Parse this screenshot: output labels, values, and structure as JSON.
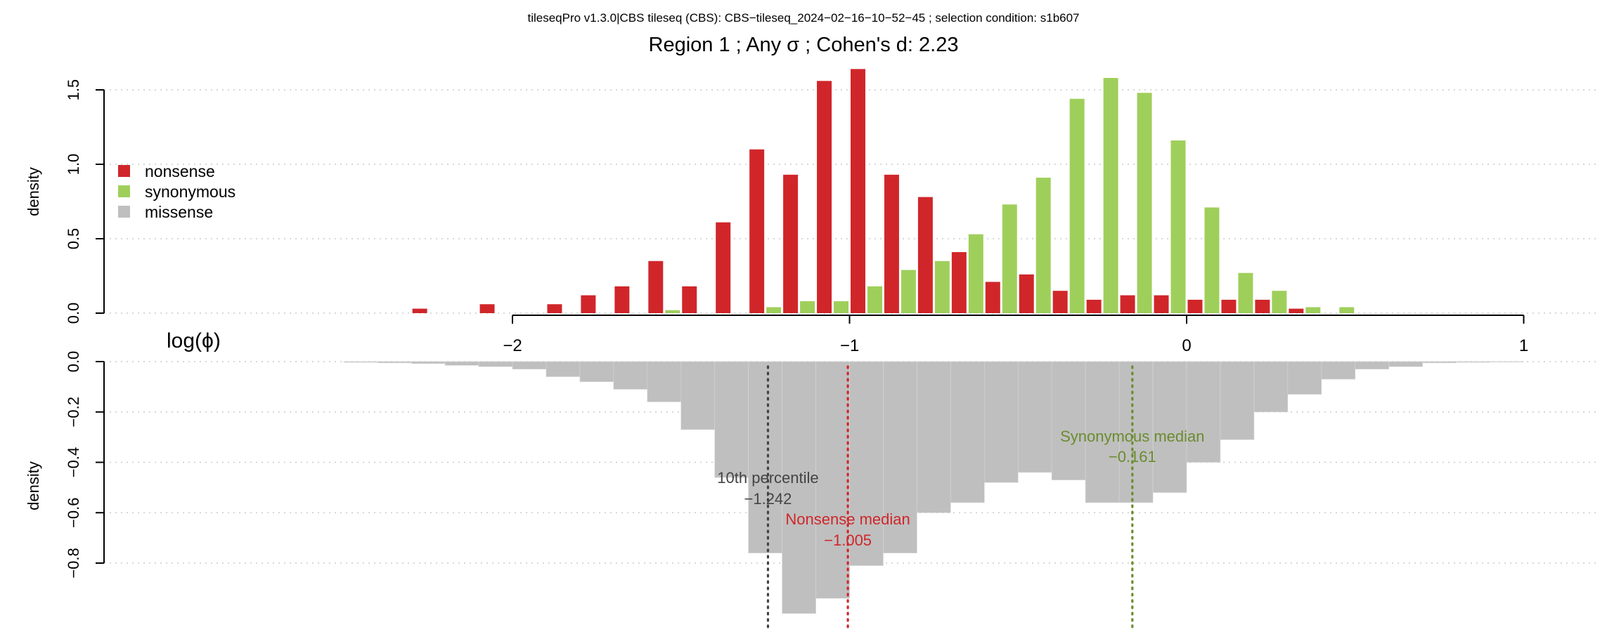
{
  "header": {
    "subtitle": "tileseqPro v1.3.0|CBS tileseq (CBS): CBS−tileseq_2024−02−16−10−52−45 ; selection condition: s1b607",
    "title": "Region 1 ; Any σ ; Cohen's d:  2.23"
  },
  "colors": {
    "nonsense": "#d0262a",
    "synonymous": "#9fcf5b",
    "missense": "#bfbfbf",
    "percentile_line": "#444444",
    "nonsense_median_line": "#d0262a",
    "synonymous_median_line": "#6b8c2e",
    "grid": "#cccccc"
  },
  "legend": {
    "items": [
      {
        "label": "nonsense",
        "color": "#d0262a"
      },
      {
        "label": "synonymous",
        "color": "#9fcf5b"
      },
      {
        "label": "missense",
        "color": "#bfbfbf"
      }
    ]
  },
  "chart_data": [
    {
      "type": "bar",
      "ylabel": "density",
      "xlabel": "log(ϕ)",
      "xlim": [
        -2.2,
        1.0
      ],
      "ylim": [
        0,
        1.6
      ],
      "grid": true,
      "legend_placement": "left",
      "bin_width": 0.1,
      "x_ticks": [
        -2,
        -1,
        0,
        1
      ],
      "x_tick_labels": [
        "−2",
        "−1",
        "0",
        "1"
      ],
      "y_ticks": [
        0.0,
        0.5,
        1.0,
        1.5
      ],
      "y_tick_labels": [
        "0.0",
        "0.5",
        "1.0",
        "1.5"
      ],
      "series": [
        {
          "name": "nonsense",
          "color": "#d0262a",
          "bins": [
            {
              "x": -2.25,
              "density": 0.03
            },
            {
              "x": -2.05,
              "density": 0.06
            },
            {
              "x": -1.85,
              "density": 0.06
            },
            {
              "x": -1.75,
              "density": 0.12
            },
            {
              "x": -1.65,
              "density": 0.18
            },
            {
              "x": -1.55,
              "density": 0.35
            },
            {
              "x": -1.45,
              "density": 0.18
            },
            {
              "x": -1.35,
              "density": 0.61
            },
            {
              "x": -1.25,
              "density": 1.1
            },
            {
              "x": -1.15,
              "density": 0.93
            },
            {
              "x": -1.05,
              "density": 1.56
            },
            {
              "x": -0.95,
              "density": 1.64
            },
            {
              "x": -0.85,
              "density": 0.93
            },
            {
              "x": -0.75,
              "density": 0.78
            },
            {
              "x": -0.65,
              "density": 0.41
            },
            {
              "x": -0.55,
              "density": 0.21
            },
            {
              "x": -0.45,
              "density": 0.26
            },
            {
              "x": -0.35,
              "density": 0.15
            },
            {
              "x": -0.25,
              "density": 0.09
            },
            {
              "x": -0.15,
              "density": 0.12
            },
            {
              "x": -0.05,
              "density": 0.12
            },
            {
              "x": 0.05,
              "density": 0.09
            },
            {
              "x": 0.15,
              "density": 0.09
            },
            {
              "x": 0.25,
              "density": 0.09
            },
            {
              "x": 0.35,
              "density": 0.03
            }
          ]
        },
        {
          "name": "synonymous",
          "color": "#9fcf5b",
          "bins": [
            {
              "x": -1.55,
              "density": 0.02
            },
            {
              "x": -1.25,
              "density": 0.04
            },
            {
              "x": -1.15,
              "density": 0.08
            },
            {
              "x": -1.05,
              "density": 0.08
            },
            {
              "x": -0.95,
              "density": 0.18
            },
            {
              "x": -0.85,
              "density": 0.29
            },
            {
              "x": -0.75,
              "density": 0.35
            },
            {
              "x": -0.65,
              "density": 0.53
            },
            {
              "x": -0.55,
              "density": 0.73
            },
            {
              "x": -0.45,
              "density": 0.91
            },
            {
              "x": -0.35,
              "density": 1.44
            },
            {
              "x": -0.25,
              "density": 1.58
            },
            {
              "x": -0.15,
              "density": 1.48
            },
            {
              "x": -0.05,
              "density": 1.16
            },
            {
              "x": 0.05,
              "density": 0.71
            },
            {
              "x": 0.15,
              "density": 0.27
            },
            {
              "x": 0.25,
              "density": 0.15
            },
            {
              "x": 0.35,
              "density": 0.04
            },
            {
              "x": 0.45,
              "density": 0.04
            }
          ]
        }
      ]
    },
    {
      "type": "bar",
      "ylabel": "density",
      "ylim": [
        -0.9,
        0.0
      ],
      "grid": true,
      "y_ticks": [
        0.0,
        -0.2,
        -0.4,
        -0.6,
        -0.8
      ],
      "y_tick_labels": [
        "0.0",
        "−0.2",
        "−0.4",
        "−0.6",
        "−0.8"
      ],
      "series": [
        {
          "name": "missense",
          "color": "#bfbfbf",
          "bin_width": 0.1,
          "bins": [
            {
              "x": -2.45,
              "density": -0.003
            },
            {
              "x": -2.35,
              "density": -0.005
            },
            {
              "x": -2.25,
              "density": -0.008
            },
            {
              "x": -2.15,
              "density": -0.015
            },
            {
              "x": -2.05,
              "density": -0.02
            },
            {
              "x": -1.95,
              "density": -0.03
            },
            {
              "x": -1.85,
              "density": -0.06
            },
            {
              "x": -1.75,
              "density": -0.08
            },
            {
              "x": -1.65,
              "density": -0.11
            },
            {
              "x": -1.55,
              "density": -0.16
            },
            {
              "x": -1.45,
              "density": -0.27
            },
            {
              "x": -1.35,
              "density": -0.46
            },
            {
              "x": -1.25,
              "density": -0.76
            },
            {
              "x": -1.15,
              "density": -1.0
            },
            {
              "x": -1.05,
              "density": -0.94
            },
            {
              "x": -0.95,
              "density": -0.81
            },
            {
              "x": -0.85,
              "density": -0.76
            },
            {
              "x": -0.75,
              "density": -0.6
            },
            {
              "x": -0.65,
              "density": -0.56
            },
            {
              "x": -0.55,
              "density": -0.48
            },
            {
              "x": -0.45,
              "density": -0.44
            },
            {
              "x": -0.35,
              "density": -0.47
            },
            {
              "x": -0.25,
              "density": -0.56
            },
            {
              "x": -0.15,
              "density": -0.56
            },
            {
              "x": -0.05,
              "density": -0.52
            },
            {
              "x": 0.05,
              "density": -0.4
            },
            {
              "x": 0.15,
              "density": -0.31
            },
            {
              "x": 0.25,
              "density": -0.2
            },
            {
              "x": 0.35,
              "density": -0.13
            },
            {
              "x": 0.45,
              "density": -0.07
            },
            {
              "x": 0.55,
              "density": -0.03
            },
            {
              "x": 0.65,
              "density": -0.02
            },
            {
              "x": 0.75,
              "density": -0.005
            },
            {
              "x": 0.85,
              "density": -0.003
            },
            {
              "x": 0.95,
              "density": -0.002
            }
          ]
        }
      ],
      "reference_lines": [
        {
          "id": "percentile10",
          "label": "10th percentile",
          "value_label": "−1.242",
          "x": -1.242,
          "color": "#444444"
        },
        {
          "id": "nonsense-median",
          "label": "Nonsense median",
          "value_label": "−1.005",
          "x": -1.005,
          "color": "#d0262a"
        },
        {
          "id": "synonymous-median",
          "label": "Synonymous median",
          "value_label": "−0.161",
          "x": -0.161,
          "color": "#6b8c2e"
        }
      ]
    }
  ]
}
